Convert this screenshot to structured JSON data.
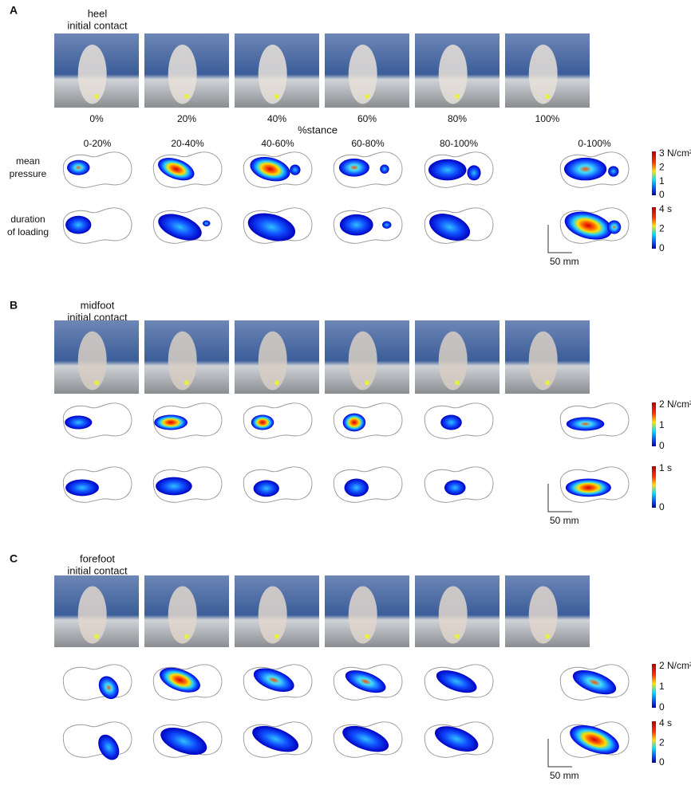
{
  "stance_phases": [
    "0%",
    "20%",
    "40%",
    "60%",
    "80%",
    "100%"
  ],
  "stance_label": "%stance",
  "intervals": [
    "0-20%",
    "20-40%",
    "40-60%",
    "60-80%",
    "80-100%",
    "0-100%"
  ],
  "row_labels": {
    "pressure": [
      "mean",
      "pressure"
    ],
    "loading": [
      "duration",
      "of loading"
    ]
  },
  "panels": [
    {
      "letter": "A",
      "contact": [
        "heel",
        "initial contact"
      ],
      "pressure_scale": [
        "3 N/cm²",
        "2",
        "1",
        "0"
      ],
      "loading_scale": [
        "4 s",
        "2",
        "0"
      ],
      "scale_bar": "50 mm"
    },
    {
      "letter": "B",
      "contact": [
        "midfoot",
        "initial contact"
      ],
      "pressure_scale": [
        "2 N/cm²",
        "1",
        "0"
      ],
      "loading_scale": [
        "1 s",
        "0"
      ],
      "scale_bar": "50 mm"
    },
    {
      "letter": "C",
      "contact": [
        "forefoot",
        "initial contact"
      ],
      "pressure_scale": [
        "2 N/cm²",
        "1",
        "0"
      ],
      "loading_scale": [
        "4 s",
        "2",
        "0"
      ],
      "scale_bar": "50 mm"
    }
  ]
}
